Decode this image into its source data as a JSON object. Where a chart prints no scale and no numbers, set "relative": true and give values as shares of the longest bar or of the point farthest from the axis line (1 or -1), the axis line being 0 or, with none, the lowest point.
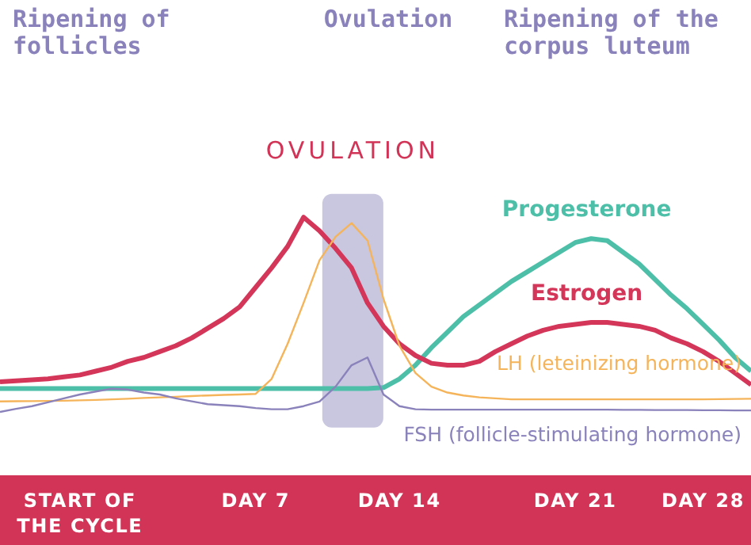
{
  "chart_data": {
    "type": "line",
    "relative": true,
    "annotations": [
      "Ripening of follicles",
      "Ovulation",
      "Ripening of the corpus luteum",
      "OVULATION"
    ],
    "categories": [
      null,
      null,
      null,
      null,
      null,
      "START OF THE CYCLE",
      null,
      null,
      null,
      null,
      null,
      null,
      null,
      null,
      null,
      null,
      "DAY 7",
      null,
      null,
      null,
      null,
      null,
      null,
      null,
      null,
      "DAY 14",
      null,
      null,
      null,
      null,
      null,
      null,
      null,
      null,
      null,
      null,
      "DAY 21",
      null,
      null,
      null,
      null,
      null,
      null,
      null,
      "DAY 28",
      null,
      null,
      null
    ],
    "series": [
      {
        "name": "Progesterone",
        "color": "#4dbfa8",
        "values": [
          0.12,
          0.12,
          0.12,
          0.12,
          0.12,
          0.12,
          0.12,
          0.12,
          0.12,
          0.12,
          0.12,
          0.12,
          0.12,
          0.12,
          0.12,
          0.12,
          0.12,
          0.12,
          0.12,
          0.12,
          0.12,
          0.12,
          0.12,
          0.12,
          0.125,
          0.17,
          0.24,
          0.33,
          0.41,
          0.49,
          0.55,
          0.61,
          0.67,
          0.72,
          0.77,
          0.82,
          0.87,
          0.89,
          0.88,
          0.82,
          0.76,
          0.68,
          0.6,
          0.53,
          0.45,
          0.37,
          0.28,
          0.21
        ]
      },
      {
        "name": "Estrogen",
        "color": "#d4365a",
        "values": [
          0.155,
          0.16,
          0.165,
          0.17,
          0.18,
          0.19,
          0.21,
          0.23,
          0.26,
          0.28,
          0.31,
          0.34,
          0.38,
          0.43,
          0.48,
          0.54,
          0.64,
          0.74,
          0.85,
          1,
          0.93,
          0.84,
          0.74,
          0.56,
          0.44,
          0.35,
          0.29,
          0.25,
          0.24,
          0.24,
          0.26,
          0.31,
          0.35,
          0.39,
          0.42,
          0.44,
          0.45,
          0.46,
          0.46,
          0.45,
          0.44,
          0.42,
          0.38,
          0.35,
          0.31,
          0.26,
          0.2,
          0.14
        ]
      },
      {
        "name": "LH (leteinizing hormone)",
        "color": "#f5b45a",
        "values": [
          0.054,
          0.055,
          0.056,
          0.057,
          0.058,
          0.06,
          0.062,
          0.065,
          0.068,
          0.072,
          0.075,
          0.078,
          0.082,
          0.085,
          0.088,
          0.09,
          0.093,
          0.17,
          0.35,
          0.56,
          0.78,
          0.9,
          0.97,
          0.88,
          0.58,
          0.34,
          0.2,
          0.13,
          0.1,
          0.085,
          0.075,
          0.07,
          0.065,
          0.065,
          0.065,
          0.065,
          0.065,
          0.065,
          0.065,
          0.065,
          0.065,
          0.065,
          0.065,
          0.065,
          0.065,
          0.066,
          0.067,
          0.068
        ]
      },
      {
        "name": "FSH (follicle-stimulating hormone)",
        "color": "#8a82bb",
        "values": [
          0,
          0.016,
          0.03,
          0.05,
          0.07,
          0.09,
          0.105,
          0.12,
          0.115,
          0.1,
          0.09,
          0.07,
          0.055,
          0.04,
          0.035,
          0.03,
          0.02,
          0.014,
          0.014,
          0.03,
          0.054,
          0.13,
          0.24,
          0.28,
          0.09,
          0.03,
          0.014,
          0.012,
          0.012,
          0.012,
          0.012,
          0.012,
          0.012,
          0.012,
          0.012,
          0.012,
          0.012,
          0.012,
          0.012,
          0.011,
          0.011,
          0.01,
          0.01,
          0.01,
          0.009,
          0.009,
          0.008,
          0.008
        ]
      }
    ]
  }
}
